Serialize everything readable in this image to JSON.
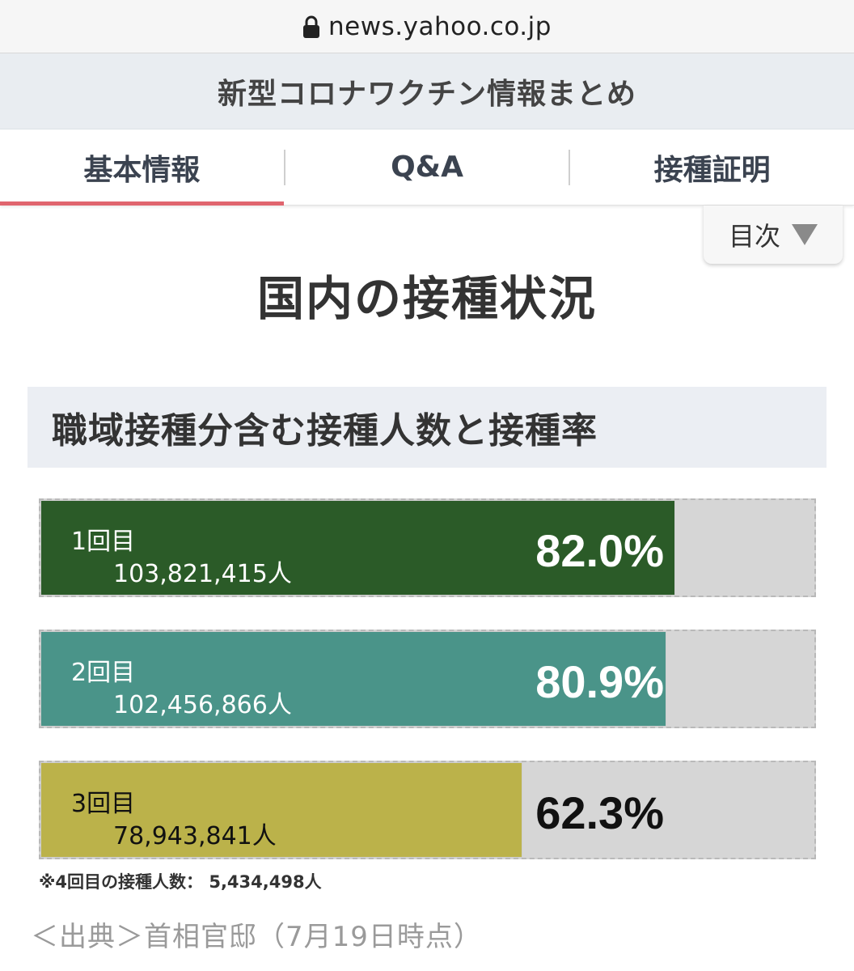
{
  "browser": {
    "url": "news.yahoo.co.jp"
  },
  "header": {
    "title": "新型コロナワクチン情報まとめ"
  },
  "tabs": [
    {
      "label": "基本情報",
      "active": true
    },
    {
      "label": "Q&A",
      "active": false
    },
    {
      "label": "接種証明",
      "active": false
    }
  ],
  "toc": {
    "label": "目次"
  },
  "section": {
    "title": "国内の接種状況"
  },
  "subheading": "職域接種分含む接種人数と接種率",
  "chart_data": {
    "type": "bar",
    "categories": [
      "1回目",
      "2回目",
      "3回目"
    ],
    "values": [
      82.0,
      80.9,
      62.3
    ],
    "counts": [
      "103,821,415人",
      "102,456,866人",
      "78,943,841人"
    ],
    "labels": [
      "82.0%",
      "80.9%",
      "62.3%"
    ],
    "colors": [
      "#2b5b28",
      "#4a9489",
      "#bbb24a"
    ],
    "ylim": [
      0,
      100
    ]
  },
  "footnote": "※4回目の接種人数： 5,434,498人",
  "source": "＜出典＞首相官邸（7月19日時点）"
}
